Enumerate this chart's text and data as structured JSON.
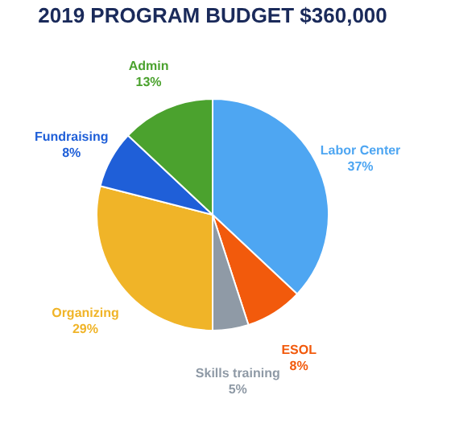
{
  "chart_data": {
    "type": "pie",
    "title": "2019 PROGRAM BUDGET $360,000",
    "categories": [
      "Labor Center",
      "ESOL",
      "Skills training",
      "Organizing",
      "Fundraising",
      "Admin"
    ],
    "values": [
      37,
      8,
      5,
      29,
      8,
      13
    ],
    "value_labels": [
      "37%",
      "8%",
      "5%",
      "29%",
      "8%",
      "13%"
    ],
    "colors": [
      "#4ea6f2",
      "#f25a0c",
      "#8f9aa6",
      "#f0b428",
      "#1f5fd8",
      "#4ba22e"
    ],
    "legend": false
  }
}
